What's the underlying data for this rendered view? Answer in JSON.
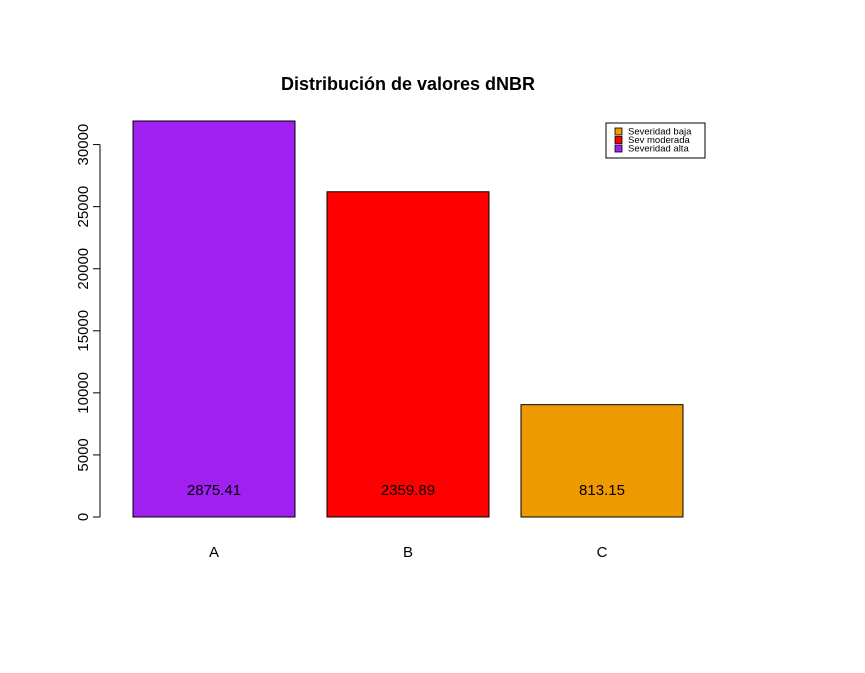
{
  "chart_data": {
    "type": "bar",
    "title": "Distribución de valores dNBR",
    "xlabel": "",
    "ylabel": "",
    "categories": [
      "A",
      "B",
      "C"
    ],
    "values": [
      31900,
      26200,
      9050
    ],
    "bar_labels": [
      "2875.41",
      "2359.89",
      "813.15"
    ],
    "colors": [
      "#A020F0",
      "#FF0000",
      "#EE9A00"
    ],
    "yticks": [
      0,
      5000,
      10000,
      15000,
      20000,
      25000,
      30000
    ],
    "ylim": [
      0,
      31900
    ],
    "grid": false,
    "legend": {
      "placement": "top-right",
      "entries": [
        {
          "label": "Severidad baja",
          "color": "#EE9A00"
        },
        {
          "label": "Sev moderada",
          "color": "#FF0000"
        },
        {
          "label": "Severidad alta",
          "color": "#A020F0"
        }
      ]
    }
  }
}
